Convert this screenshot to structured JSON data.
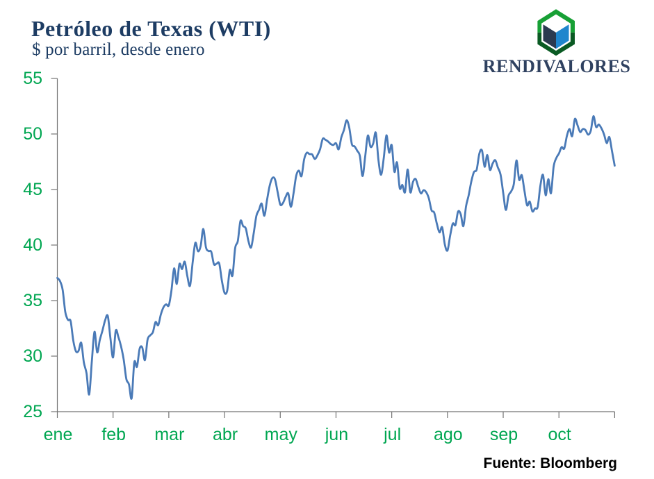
{
  "title": "Petróleo de Texas (WTI)",
  "subtitle": "$ por barril, desde enero",
  "source": "Fuente: Bloomberg",
  "logo": {
    "brand": "RENDIVALORES",
    "icon": "hexagon-cube-icon",
    "colors": {
      "hex_top": "#17a035",
      "hex_bottom": "#0a5a23",
      "inner_border": "#ffffff",
      "cube_left": "#2b3a50",
      "cube_right": "#1f86cd",
      "cube_top": "#ffffff",
      "brand_text": "#2f4160"
    }
  },
  "colors": {
    "title": "#1d3c63",
    "subtitle": "#1d3c63",
    "line": "#4a7ab7",
    "axis_label": "#00a651",
    "axis_line": "#747474",
    "source": "#000000",
    "background": "#ffffff"
  },
  "chart_data": {
    "type": "line",
    "title": "Petróleo de Texas (WTI)",
    "subtitle": "$ por barril, desde enero",
    "source": "Fuente: Bloomberg",
    "ylabel": "$ por barril",
    "ylim": [
      25,
      55
    ],
    "y_ticks": [
      55,
      50,
      45,
      40,
      35,
      30,
      25
    ],
    "x_tick_labels": [
      "ene",
      "feb",
      "mar",
      "abr",
      "may",
      "jun",
      "jul",
      "ago",
      "sep",
      "oct"
    ],
    "x_tick_interval_points": 21,
    "grid": false,
    "legend": "none",
    "series": [
      {
        "name": "WTI",
        "values": [
          37.04,
          36.76,
          35.97,
          33.97,
          33.27,
          33.16,
          31.41,
          30.44,
          30.48,
          31.2,
          29.42,
          28.46,
          26.55,
          29.53,
          32.19,
          30.34,
          31.45,
          32.3,
          33.22,
          33.62,
          31.62,
          29.88,
          32.28,
          31.72,
          30.89,
          29.69,
          27.94,
          27.45,
          26.21,
          29.44,
          29.04,
          30.66,
          30.77,
          29.64,
          31.48,
          31.87,
          32.15,
          33.07,
          32.78,
          33.75,
          34.4,
          34.66,
          34.57,
          35.92,
          37.9,
          36.5,
          38.29,
          37.84,
          38.5,
          37.18,
          36.34,
          38.46,
          40.2,
          39.44,
          39.91,
          41.45,
          39.79,
          39.46,
          39.39,
          38.28,
          38.32,
          38.34,
          36.79,
          35.7,
          35.89,
          37.75,
          37.26,
          39.72,
          40.36,
          42.17,
          41.71,
          41.5,
          40.36,
          39.78,
          41.08,
          42.63,
          43.18,
          43.73,
          42.64,
          44.04,
          45.33,
          46.03,
          45.92,
          44.78,
          43.65,
          43.78,
          44.32,
          44.66,
          43.44,
          44.66,
          46.23,
          46.7,
          46.21,
          47.72,
          48.31,
          48.19,
          48.16,
          47.75,
          48.08,
          48.62,
          49.56,
          49.48,
          49.33,
          49.1,
          49.01,
          49.17,
          48.62,
          49.69,
          50.36,
          51.23,
          50.56,
          49.07,
          48.88,
          48.49,
          48.01,
          46.21,
          47.98,
          49.86,
          48.85,
          49.13,
          50.11,
          47.64,
          46.33,
          47.85,
          49.88,
          48.33,
          48.99,
          46.6,
          47.43,
          45.14,
          45.41,
          44.76,
          46.8,
          44.75,
          45.68,
          45.95,
          45.24,
          44.65,
          44.94,
          44.75,
          44.19,
          43.13,
          42.92,
          41.92,
          41.14,
          41.6,
          40.06,
          39.51,
          40.83,
          41.93,
          41.8,
          43.02,
          42.77,
          41.71,
          43.49,
          44.49,
          45.74,
          46.58,
          46.79,
          48.22,
          48.52,
          47.05,
          48.1,
          46.77,
          47.33,
          47.64,
          46.98,
          46.35,
          44.7,
          43.16,
          44.44,
          44.83,
          45.5,
          47.62,
          45.88,
          46.29,
          44.9,
          43.58,
          43.91,
          43.03,
          43.3,
          43.44,
          45.34,
          46.32,
          44.48,
          45.93,
          44.67,
          47.05,
          47.83,
          48.24,
          48.81,
          48.69,
          49.83,
          50.44,
          49.81,
          51.35,
          50.79,
          50.18,
          50.44,
          50.35,
          49.94,
          50.29,
          51.6,
          50.63,
          50.85,
          50.52,
          49.96,
          49.18,
          49.72,
          48.45,
          47.15
        ]
      }
    ]
  }
}
